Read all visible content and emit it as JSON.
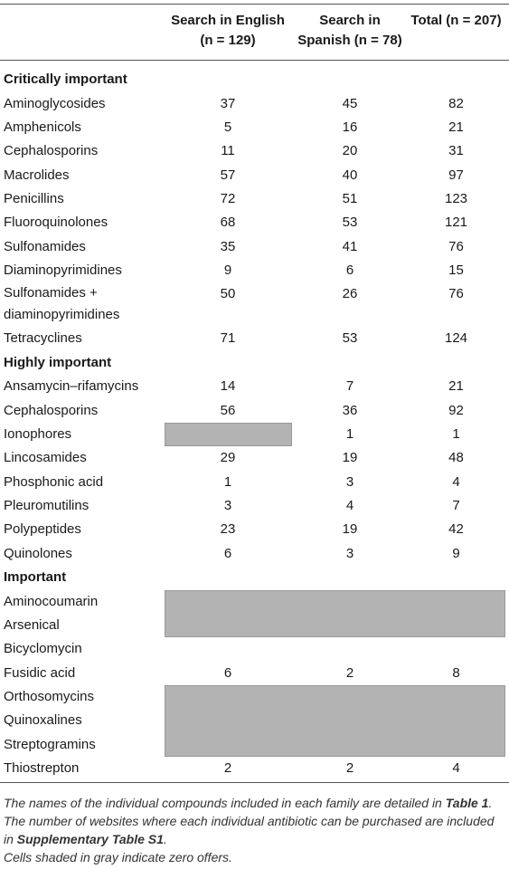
{
  "header": {
    "col1_line1": "Search in English",
    "col1_line2": "(n = 129)",
    "col2_line1": "Search in",
    "col2_line2": "Spanish (n = 78)",
    "col3_line1": "Total (n = 207)"
  },
  "sections": [
    {
      "title": "Critically important",
      "rows": [
        {
          "name": "Aminoglycosides",
          "en": "37",
          "es": "45",
          "total": "82"
        },
        {
          "name": "Amphenicols",
          "en": "5",
          "es": "16",
          "total": "21"
        },
        {
          "name": "Cephalosporins",
          "en": "11",
          "es": "20",
          "total": "31"
        },
        {
          "name": "Macrolides",
          "en": "57",
          "es": "40",
          "total": "97"
        },
        {
          "name": "Penicillins",
          "en": "72",
          "es": "51",
          "total": "123"
        },
        {
          "name": "Fluoroquinolones",
          "en": "68",
          "es": "53",
          "total": "121"
        },
        {
          "name": "Sulfonamides",
          "en": "35",
          "es": "41",
          "total": "76"
        },
        {
          "name": "Diaminopyrimidines",
          "en": "9",
          "es": "6",
          "total": "15"
        },
        {
          "name_line1": "Sulfonamides +",
          "name_line2": "diaminopyrimidines",
          "en": "50",
          "es": "26",
          "total": "76"
        },
        {
          "name": "Tetracyclines",
          "en": "71",
          "es": "53",
          "total": "124"
        }
      ]
    },
    {
      "title": "Highly important",
      "rows": [
        {
          "name": "Ansamycin–rifamycins",
          "en": "14",
          "es": "7",
          "total": "21"
        },
        {
          "name": "Cephalosporins",
          "en": "56",
          "es": "36",
          "total": "92"
        },
        {
          "name": "Ionophores",
          "en": "",
          "es": "1",
          "total": "1"
        },
        {
          "name": "Lincosamides",
          "en": "29",
          "es": "19",
          "total": "48"
        },
        {
          "name": "Phosphonic acid",
          "en": "1",
          "es": "3",
          "total": "4"
        },
        {
          "name": "Pleuromutilins",
          "en": "3",
          "es": "4",
          "total": "7"
        },
        {
          "name": "Polypeptides",
          "en": "23",
          "es": "19",
          "total": "42"
        },
        {
          "name": "Quinolones",
          "en": "6",
          "es": "3",
          "total": "9"
        }
      ]
    },
    {
      "title": "Important",
      "rows": [
        {
          "name": "Aminocoumarin",
          "en": "",
          "es": "",
          "total": ""
        },
        {
          "name": "Arsenical",
          "en": "",
          "es": "",
          "total": ""
        },
        {
          "name": "Bicyclomycin",
          "en": "",
          "es": "",
          "total": ""
        },
        {
          "name": "Fusidic acid",
          "en": "6",
          "es": "2",
          "total": "8"
        },
        {
          "name": "Orthosomycins",
          "en": "",
          "es": "",
          "total": ""
        },
        {
          "name": "Quinoxalines",
          "en": "",
          "es": "",
          "total": ""
        },
        {
          "name": "Streptogramins",
          "en": "",
          "es": "",
          "total": ""
        },
        {
          "name": "Thiostrepton",
          "en": "2",
          "es": "2",
          "total": "4"
        }
      ]
    }
  ],
  "footnote": {
    "line1_a": "The names of the individual compounds included in each family are detailed in ",
    "line1_b": "Table 1",
    "line1_c": ".",
    "line2_a": "The number of websites where each individual antibiotic can be purchased are included",
    "line2_b": "in ",
    "line2_c": "Supplementary Table S1",
    "line2_d": ".",
    "line3": "Cells shaded in gray indicate zero offers."
  },
  "colors": {
    "gray_cell": "#b3b3b3",
    "rule": "#555555"
  }
}
